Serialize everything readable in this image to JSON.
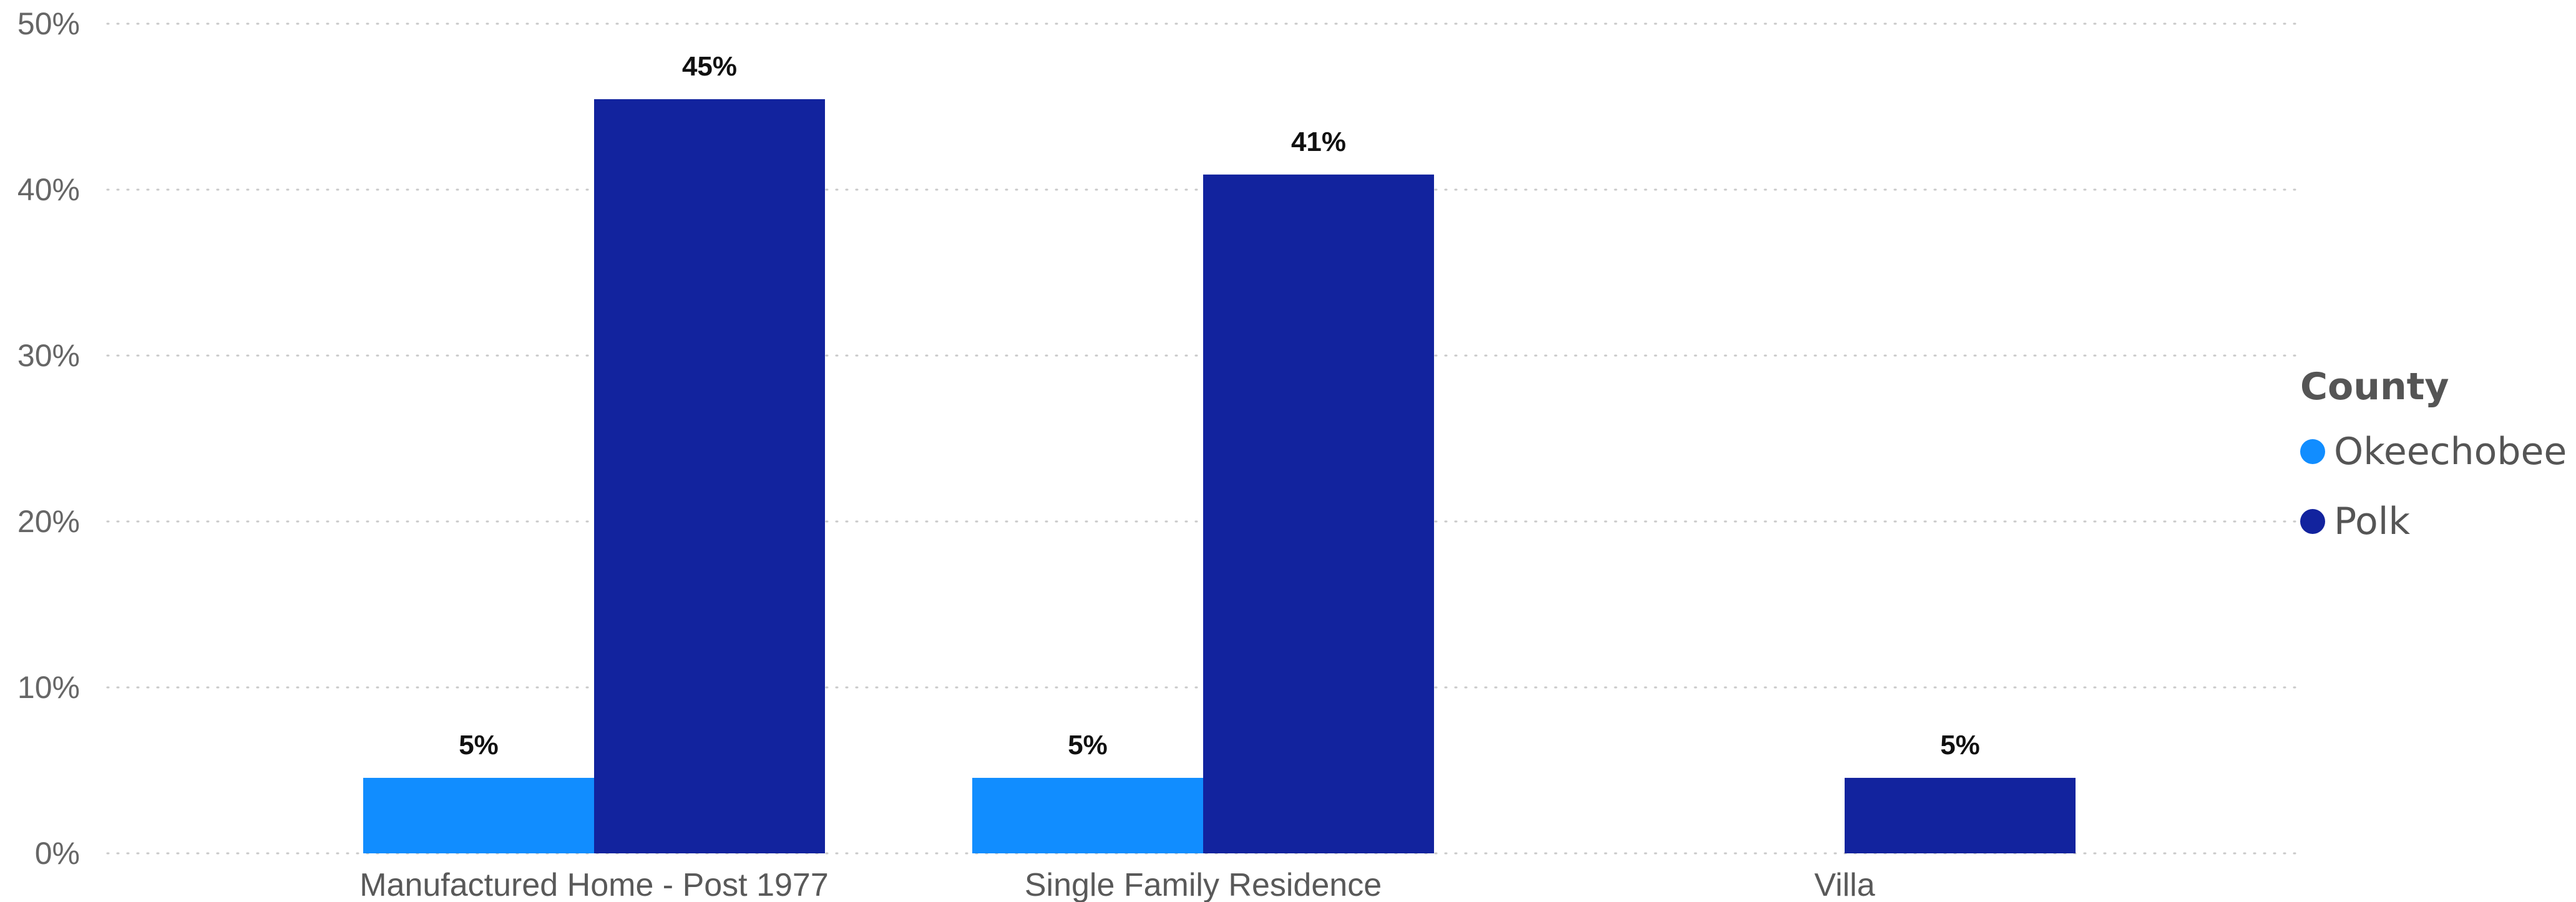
{
  "chart_data": {
    "type": "bar",
    "title": "",
    "xlabel": "",
    "ylabel": "",
    "categories": [
      "Manufactured Home - Post 1977",
      "Single Family Residence",
      "Villa"
    ],
    "series": [
      {
        "name": "Okeechobee",
        "color": "#118DFF",
        "values": [
          4.55,
          4.55,
          null
        ],
        "labels": [
          "5%",
          "5%",
          ""
        ]
      },
      {
        "name": "Polk",
        "color": "#12239E",
        "values": [
          45.45,
          40.91,
          4.55
        ],
        "labels": [
          "45%",
          "41%",
          "5%"
        ]
      }
    ],
    "ylim": [
      0,
      50
    ],
    "y_ticks": [
      0,
      10,
      20,
      30,
      40,
      50
    ],
    "y_tick_labels": [
      "0%",
      "10%",
      "20%",
      "30%",
      "40%",
      "50%"
    ],
    "grid": true,
    "legend": {
      "title": "County",
      "placement": "right",
      "items": [
        "Okeechobee",
        "Polk"
      ]
    }
  }
}
